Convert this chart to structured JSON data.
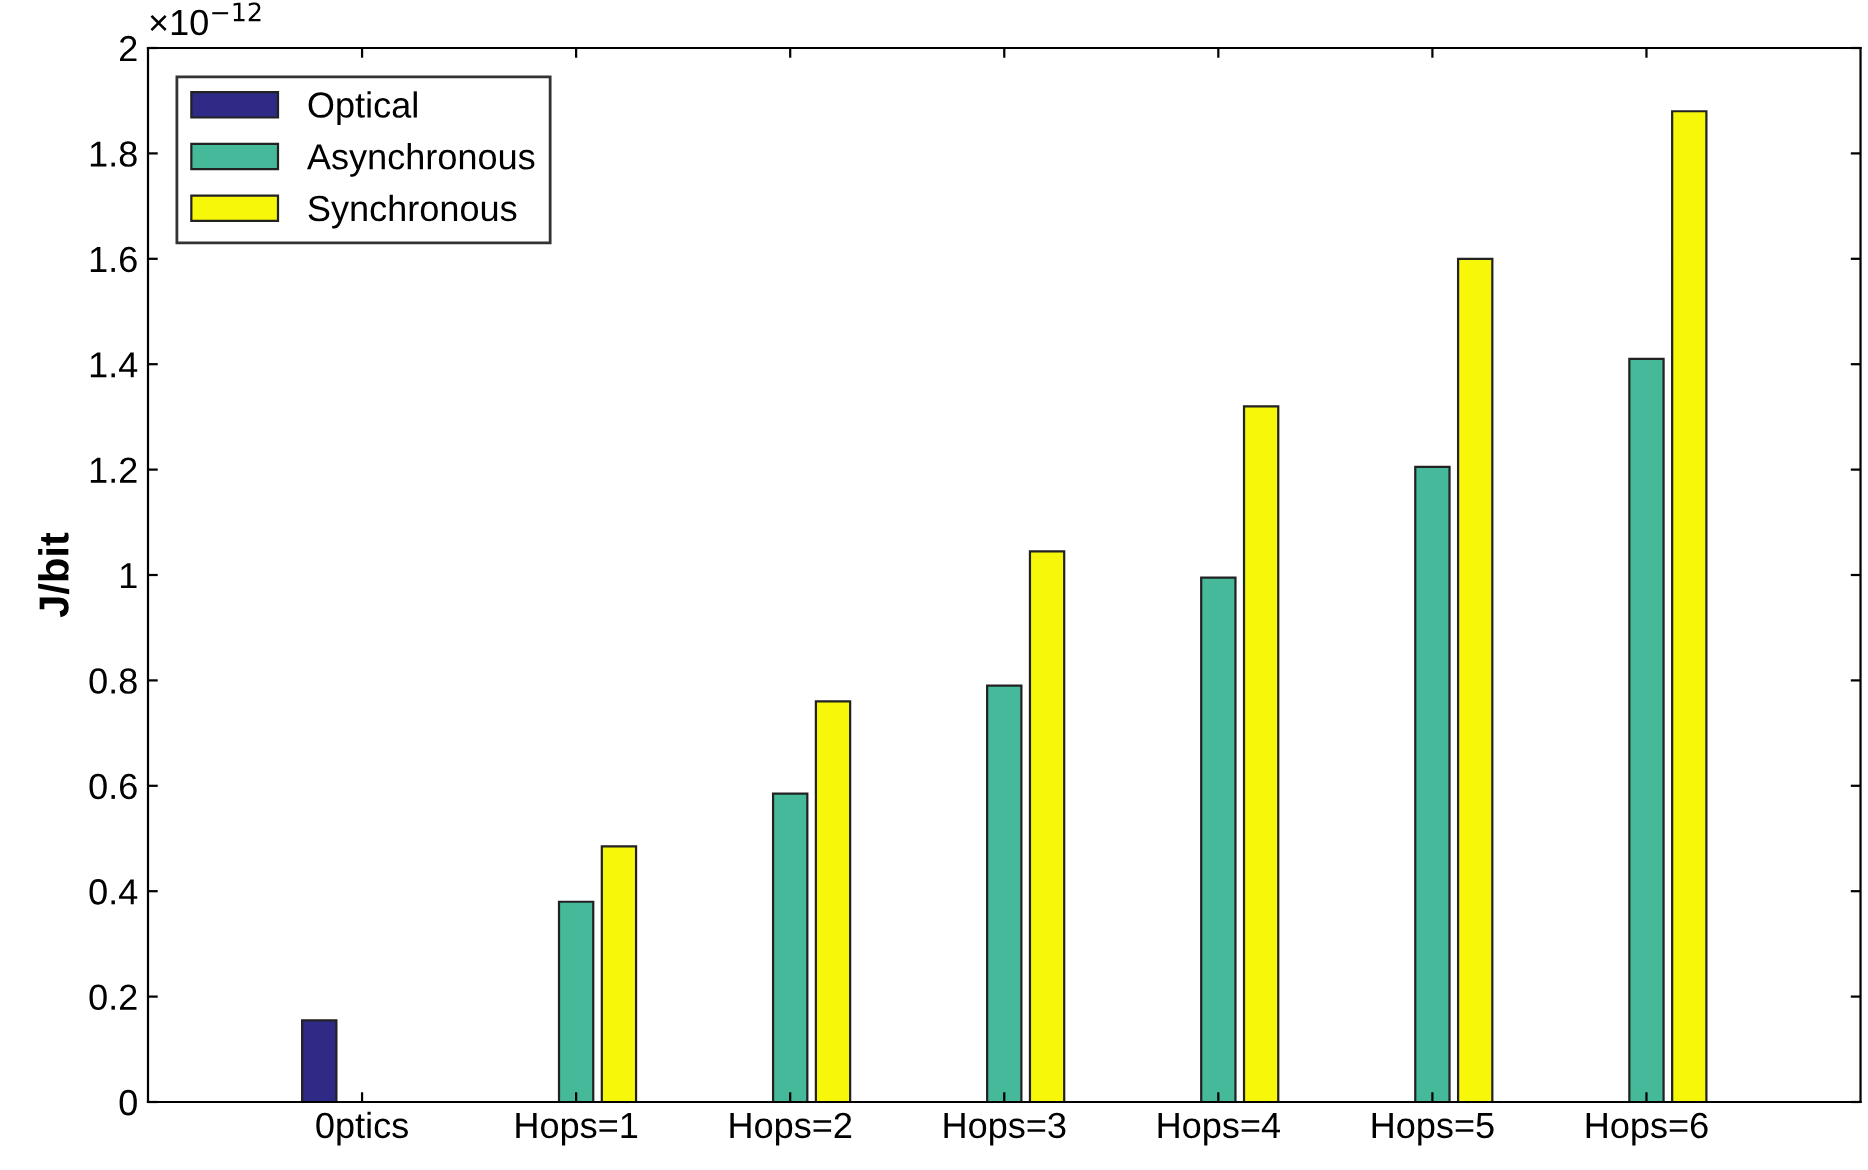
{
  "chart_data": {
    "type": "bar",
    "ylabel": "J/bit",
    "categories": [
      "0ptics",
      "Hops=1",
      "Hops=2",
      "Hops=3",
      "Hops=4",
      "Hops=5",
      "Hops=6"
    ],
    "series": [
      {
        "name": "Optical",
        "color": "#2e2a86",
        "values": [
          0.155,
          null,
          null,
          null,
          null,
          null,
          null
        ]
      },
      {
        "name": "Asynchronous",
        "color": "#46b99a",
        "values": [
          null,
          0.38,
          0.585,
          0.79,
          0.995,
          1.205,
          1.41
        ]
      },
      {
        "name": "Synchronous",
        "color": "#f7f70a",
        "values": [
          null,
          0.485,
          0.76,
          1.045,
          1.32,
          1.6,
          1.88
        ]
      }
    ],
    "ylim": [
      0,
      2
    ],
    "yticks": [
      0,
      0.2,
      0.4,
      0.6,
      0.8,
      1,
      1.2,
      1.4,
      1.6,
      1.8,
      2
    ],
    "annotations": [
      "×10$^{−12}$"
    ],
    "legend": "top left",
    "grid": false
  }
}
